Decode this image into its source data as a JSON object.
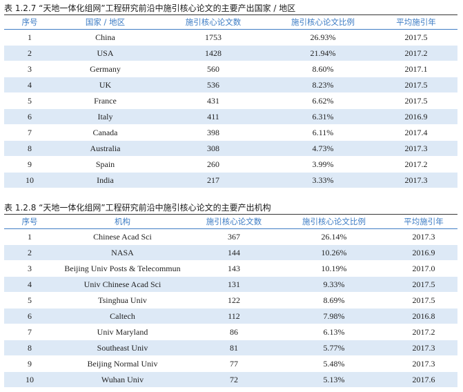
{
  "table1": {
    "caption": "表 1.2.7 “天地一体化组网”工程研究前沿中施引核心论文的主要产出国家 / 地区",
    "headers": {
      "rank": "序号",
      "name": "国家 / 地区",
      "count": "施引核心论文数",
      "pct": "施引核心论文比例",
      "year": "平均施引年"
    },
    "rows": [
      {
        "rank": "1",
        "name": "China",
        "count": "1753",
        "pct": "26.93%",
        "year": "2017.5"
      },
      {
        "rank": "2",
        "name": "USA",
        "count": "1428",
        "pct": "21.94%",
        "year": "2017.2"
      },
      {
        "rank": "3",
        "name": "Germany",
        "count": "560",
        "pct": "8.60%",
        "year": "2017.1"
      },
      {
        "rank": "4",
        "name": "UK",
        "count": "536",
        "pct": "8.23%",
        "year": "2017.5"
      },
      {
        "rank": "5",
        "name": "France",
        "count": "431",
        "pct": "6.62%",
        "year": "2017.5"
      },
      {
        "rank": "6",
        "name": "Italy",
        "count": "411",
        "pct": "6.31%",
        "year": "2016.9"
      },
      {
        "rank": "7",
        "name": "Canada",
        "count": "398",
        "pct": "6.11%",
        "year": "2017.4"
      },
      {
        "rank": "8",
        "name": "Australia",
        "count": "308",
        "pct": "4.73%",
        "year": "2017.3"
      },
      {
        "rank": "9",
        "name": "Spain",
        "count": "260",
        "pct": "3.99%",
        "year": "2017.2"
      },
      {
        "rank": "10",
        "name": "India",
        "count": "217",
        "pct": "3.33%",
        "year": "2017.3"
      }
    ]
  },
  "table2": {
    "caption": "表 1.2.8 “天地一体化组网”工程研究前沿中施引核心论文的主要产出机构",
    "headers": {
      "rank": "序号",
      "name": "机构",
      "count": "施引核心论文数",
      "pct": "施引核心论文比例",
      "year": "平均施引年"
    },
    "rows": [
      {
        "rank": "1",
        "name": "Chinese Acad Sci",
        "count": "367",
        "pct": "26.14%",
        "year": "2017.3"
      },
      {
        "rank": "2",
        "name": "NASA",
        "count": "144",
        "pct": "10.26%",
        "year": "2016.9"
      },
      {
        "rank": "3",
        "name": "Beijing Univ Posts & Telecommun",
        "count": "143",
        "pct": "10.19%",
        "year": "2017.0"
      },
      {
        "rank": "4",
        "name": "Univ Chinese Acad Sci",
        "count": "131",
        "pct": "9.33%",
        "year": "2017.5"
      },
      {
        "rank": "5",
        "name": "Tsinghua Univ",
        "count": "122",
        "pct": "8.69%",
        "year": "2017.5"
      },
      {
        "rank": "6",
        "name": "Caltech",
        "count": "112",
        "pct": "7.98%",
        "year": "2016.8"
      },
      {
        "rank": "7",
        "name": "Univ Maryland",
        "count": "86",
        "pct": "6.13%",
        "year": "2017.2"
      },
      {
        "rank": "8",
        "name": "Southeast Univ",
        "count": "81",
        "pct": "5.77%",
        "year": "2017.3"
      },
      {
        "rank": "9",
        "name": "Beijing Normal Univ",
        "count": "77",
        "pct": "5.48%",
        "year": "2017.3"
      },
      {
        "rank": "10",
        "name": "Wuhan Univ",
        "count": "72",
        "pct": "5.13%",
        "year": "2017.6"
      }
    ]
  },
  "colors": {
    "header_text": "#3d7cc4",
    "stripe": "#dde9f6",
    "rule": "#333333"
  }
}
